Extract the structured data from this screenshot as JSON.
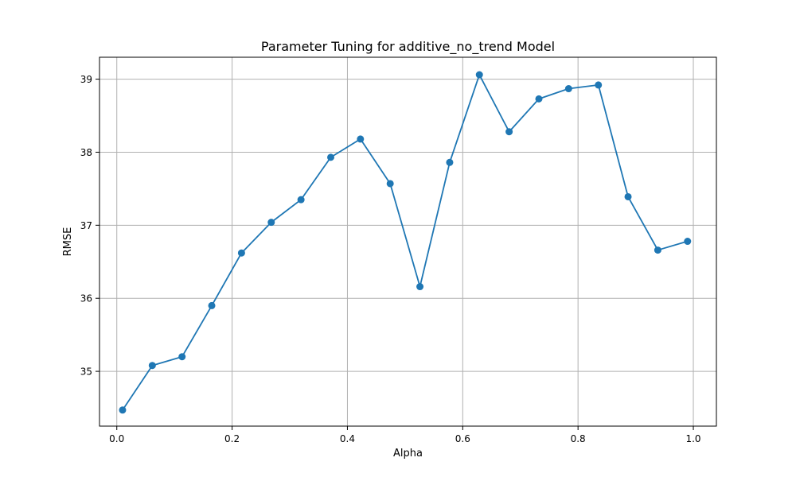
{
  "chart_data": {
    "type": "line",
    "title": "Parameter Tuning for additive_no_trend Model",
    "xlabel": "Alpha",
    "ylabel": "RMSE",
    "xlim": [
      -0.03,
      1.04
    ],
    "ylim": [
      34.25,
      39.3
    ],
    "xticks": [
      0.0,
      0.2,
      0.4,
      0.6,
      0.8,
      1.0
    ],
    "xtick_labels": [
      "0.0",
      "0.2",
      "0.4",
      "0.6",
      "0.8",
      "1.0"
    ],
    "yticks": [
      35,
      36,
      37,
      38,
      39
    ],
    "ytick_labels": [
      "35",
      "36",
      "37",
      "38",
      "39"
    ],
    "grid": true,
    "line_color": "#1f77b4",
    "marker": "circle",
    "x": [
      0.01,
      0.0616,
      0.1132,
      0.1647,
      0.2163,
      0.2679,
      0.3195,
      0.3711,
      0.4226,
      0.4742,
      0.5258,
      0.5774,
      0.6289,
      0.6805,
      0.7321,
      0.7837,
      0.8353,
      0.8868,
      0.9384,
      0.99
    ],
    "y": [
      34.47,
      35.08,
      35.2,
      35.9,
      36.62,
      37.04,
      37.35,
      37.93,
      38.18,
      37.57,
      36.16,
      37.86,
      39.06,
      38.28,
      38.73,
      38.87,
      38.92,
      37.39,
      36.66,
      36.78
    ]
  }
}
